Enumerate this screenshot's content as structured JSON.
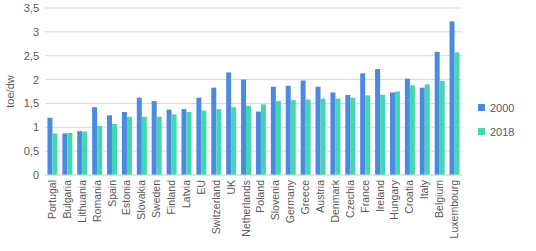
{
  "chart_data": {
    "type": "bar",
    "y_label": "toe/dw",
    "categories": [
      "Portugal",
      "Bulgaria",
      "Lithuania",
      "Romania",
      "Spain",
      "Estonia",
      "Slovakia",
      "Sweden",
      "Finland",
      "Latvia",
      "EU",
      "Switzerland",
      "UK",
      "Netherlands",
      "Poland",
      "Slovenia",
      "Germany",
      "Greece",
      "Austria",
      "Denmark",
      "Czechia",
      "France",
      "Ireland",
      "Hungary",
      "Croatia",
      "Italy",
      "Belgium",
      "Luxembourg"
    ],
    "series": [
      {
        "name": "2000",
        "color": "#4a8ae0",
        "values": [
          1.2,
          0.87,
          0.92,
          1.42,
          1.25,
          1.32,
          1.62,
          1.55,
          1.37,
          1.38,
          1.62,
          1.83,
          2.15,
          2.0,
          1.33,
          1.85,
          1.87,
          1.98,
          1.85,
          1.73,
          1.68,
          2.13,
          2.22,
          1.73,
          2.02,
          1.83,
          2.58,
          3.22
        ]
      },
      {
        "name": "2018",
        "color": "#3fd8b2",
        "values": [
          0.87,
          0.88,
          0.91,
          1.03,
          1.07,
          1.22,
          1.22,
          1.22,
          1.27,
          1.32,
          1.35,
          1.38,
          1.42,
          1.45,
          1.48,
          1.55,
          1.57,
          1.58,
          1.6,
          1.6,
          1.62,
          1.67,
          1.68,
          1.75,
          1.88,
          1.9,
          1.97,
          2.57
        ]
      }
    ],
    "ylim": [
      0,
      3.5
    ],
    "yticks": [
      0,
      {
        "value": 0.5,
        "label": "0,5"
      },
      1,
      {
        "value": 1.5,
        "label": "1,5"
      },
      2,
      {
        "value": 2.5,
        "label": "2,5"
      },
      3,
      {
        "value": 3.5,
        "label": "3,5"
      }
    ],
    "grid": true,
    "legend": "right"
  }
}
